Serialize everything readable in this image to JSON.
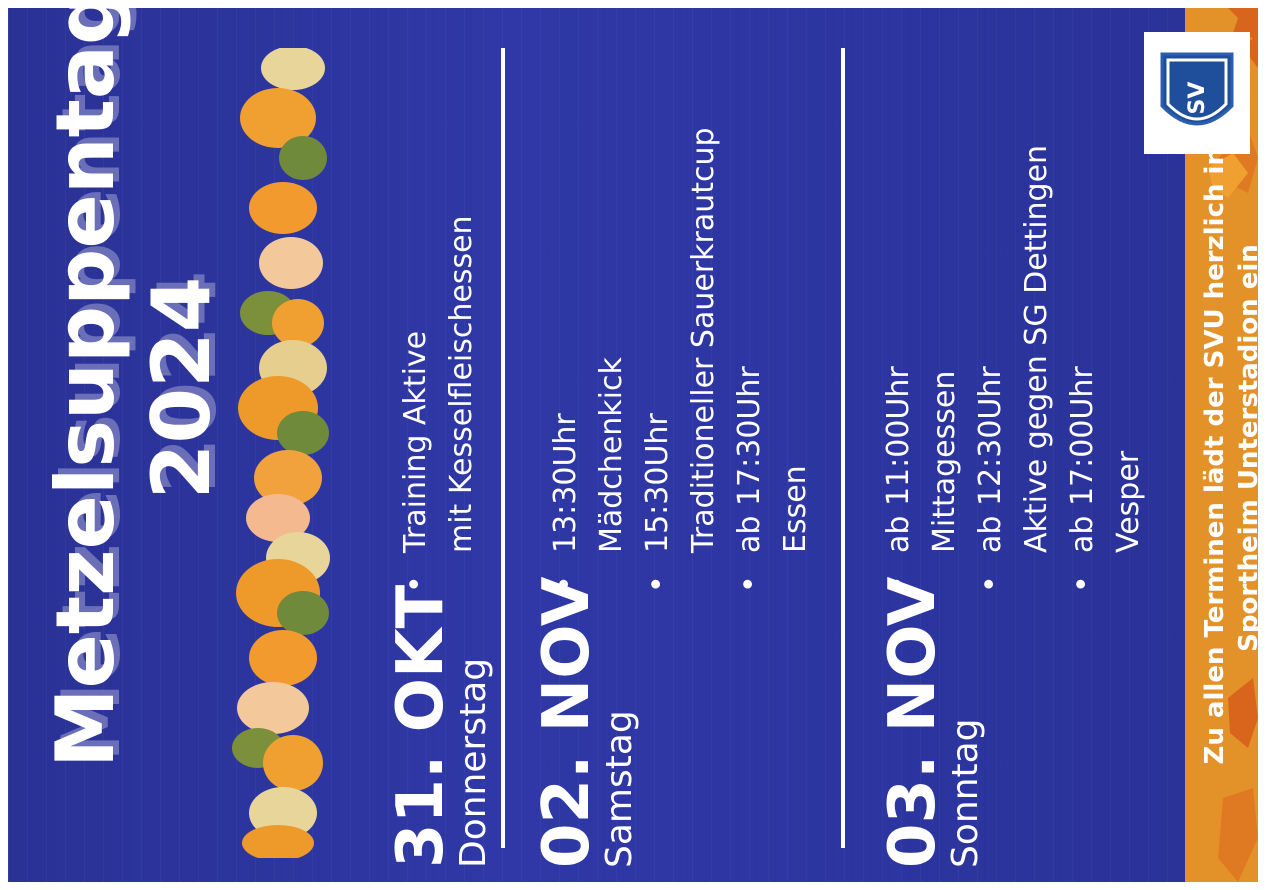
{
  "poster": {
    "title_line1": "Metzelsuppentage",
    "title_line2": "2024",
    "logo_text": "SV",
    "days": [
      {
        "date": "31. OKT",
        "weekday": "Donnerstag",
        "items": [
          {
            "text": "Training Aktive",
            "sub": "mit Kesselfleischessen"
          }
        ]
      },
      {
        "date": "02. NOV",
        "weekday": "Samstag",
        "items": [
          {
            "text": "13:30Uhr",
            "sub": "Mädchenkick"
          },
          {
            "text": "15:30Uhr",
            "sub": "Traditioneller Sauerkrautcup"
          },
          {
            "text": "ab 17:30Uhr",
            "sub": "Essen"
          }
        ]
      },
      {
        "date": "03. NOV",
        "weekday": "Sonntag",
        "items": [
          {
            "text": "ab 11:00Uhr",
            "sub": "Mittagessen"
          },
          {
            "text": "ab 12:30Uhr",
            "sub": "Aktive gegen SG Dettingen"
          },
          {
            "text": "ab 17:00Uhr",
            "sub": "Vesper"
          }
        ]
      }
    ],
    "footer_line1": "Zu allen Terminen lädt der SVU herzlich ins",
    "footer_line2": "Sportheim Unterstadion ein"
  },
  "colors": {
    "background": "#2c35a0",
    "accent": "#e3922a",
    "text": "#ffffff"
  },
  "icons": [
    "sv-club-logo",
    "pumpkin-garland",
    "autumn-leaves"
  ]
}
